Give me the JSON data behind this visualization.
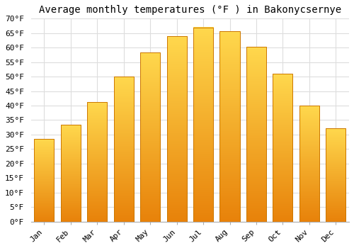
{
  "title": "Average monthly temperatures (°F ) in Bakonycsernye",
  "months": [
    "Jan",
    "Feb",
    "Mar",
    "Apr",
    "May",
    "Jun",
    "Jul",
    "Aug",
    "Sep",
    "Oct",
    "Nov",
    "Dec"
  ],
  "values": [
    28.4,
    33.3,
    41.2,
    50.0,
    58.3,
    64.0,
    67.0,
    65.7,
    60.3,
    50.9,
    39.9,
    32.2
  ],
  "bar_color_bottom": "#E8820A",
  "bar_color_top": "#FFD84D",
  "bar_edge_color": "#CC7700",
  "ylim": [
    0,
    70
  ],
  "yticks": [
    0,
    5,
    10,
    15,
    20,
    25,
    30,
    35,
    40,
    45,
    50,
    55,
    60,
    65,
    70
  ],
  "background_color": "#ffffff",
  "grid_color": "#dddddd",
  "title_fontsize": 10,
  "tick_fontsize": 8
}
